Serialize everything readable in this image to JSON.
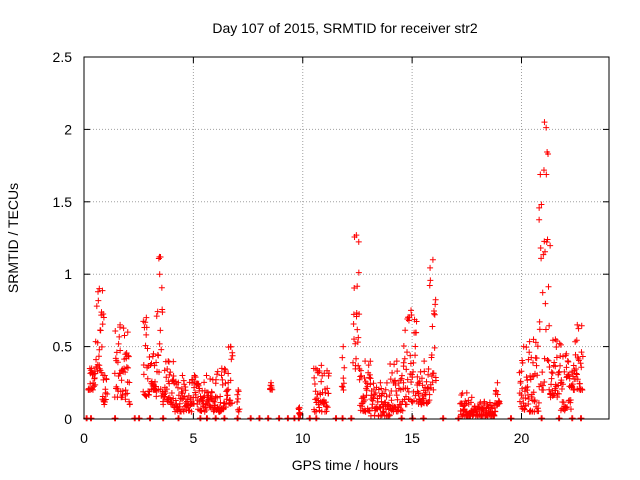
{
  "chart_data": {
    "type": "scatter",
    "title": "Day 107 of 2015, SRMTID for receiver str2",
    "xlabel": "GPS time / hours",
    "ylabel": "SRMTID / TECUs",
    "xlim": [
      0,
      24
    ],
    "ylim": [
      0,
      2.5
    ],
    "grid": true,
    "marker": "+",
    "marker_color": "#ff0000",
    "x_ticks": [
      0,
      5,
      10,
      15,
      20
    ],
    "x_tick_labels": [
      "0",
      "5",
      "10",
      "15",
      "20"
    ],
    "y_ticks": [
      0,
      0.5,
      1,
      1.5,
      2,
      2.5
    ],
    "y_tick_labels": [
      "0",
      "0.5",
      "1",
      "1.5",
      "2",
      "2.5"
    ],
    "segments": [
      [
        0.2,
        0.5,
        0.2,
        0.35
      ],
      [
        0.5,
        0.9,
        0.3,
        0.9
      ],
      [
        0.85,
        1.05,
        0.1,
        0.3
      ],
      [
        1.4,
        1.9,
        0.15,
        0.65
      ],
      [
        1.9,
        2.1,
        0.1,
        0.6
      ],
      [
        2.7,
        3.0,
        0.15,
        0.7
      ],
      [
        3.05,
        3.3,
        0.2,
        0.45
      ],
      [
        3.3,
        3.6,
        0.15,
        1.12
      ],
      [
        3.6,
        4.1,
        0.1,
        0.4
      ],
      [
        4.1,
        4.9,
        0.05,
        0.3
      ],
      [
        4.9,
        5.2,
        0.1,
        0.3
      ],
      [
        5.2,
        6.0,
        0.05,
        0.3
      ],
      [
        6.0,
        6.6,
        0.05,
        0.35
      ],
      [
        6.6,
        6.8,
        0.1,
        0.5
      ],
      [
        7.0,
        7.1,
        0.05,
        0.2
      ],
      [
        8.5,
        8.6,
        0.2,
        0.25
      ],
      [
        9.8,
        9.9,
        0.02,
        0.08
      ],
      [
        10.5,
        11.2,
        0.05,
        0.37
      ],
      [
        11.8,
        11.9,
        0.2,
        0.5
      ],
      [
        12.3,
        12.6,
        0.3,
        1.27
      ],
      [
        12.6,
        13.1,
        0.05,
        0.4
      ],
      [
        13.1,
        14.0,
        0.02,
        0.25
      ],
      [
        14.0,
        14.6,
        0.05,
        0.4
      ],
      [
        14.6,
        15.3,
        0.1,
        0.75
      ],
      [
        15.3,
        15.8,
        0.1,
        0.4
      ],
      [
        15.8,
        16.1,
        0.2,
        1.1
      ],
      [
        17.2,
        17.8,
        0.02,
        0.18
      ],
      [
        17.8,
        18.8,
        0.02,
        0.12
      ],
      [
        18.8,
        19.0,
        0.1,
        0.25
      ],
      [
        19.9,
        20.3,
        0.05,
        0.5
      ],
      [
        20.3,
        20.8,
        0.05,
        0.55
      ],
      [
        20.8,
        21.3,
        0.2,
        2.05
      ],
      [
        21.3,
        21.8,
        0.15,
        0.55
      ],
      [
        21.8,
        22.3,
        0.05,
        0.45
      ],
      [
        22.3,
        22.8,
        0.2,
        0.65
      ]
    ],
    "zero_markers": [
      0.1,
      0.3,
      1.4,
      2.3,
      2.5,
      3.0,
      3.6,
      4.3,
      5.3,
      5.6,
      6.0,
      6.4,
      7.0,
      7.6,
      8.0,
      8.4,
      8.9,
      9.3,
      9.6,
      9.8,
      10.3,
      10.6,
      11.5,
      11.8,
      12.2,
      14.5,
      15.0,
      15.5,
      16.4,
      17.1,
      19.5,
      20.9,
      21.7,
      22.3,
      22.7
    ]
  }
}
